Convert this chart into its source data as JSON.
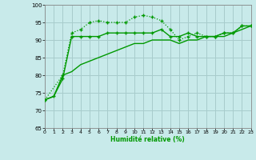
{
  "xlabel": "Humidité relative (%)",
  "xlim": [
    0,
    23
  ],
  "ylim": [
    65,
    100
  ],
  "yticks": [
    65,
    70,
    75,
    80,
    85,
    90,
    95,
    100
  ],
  "xticks": [
    0,
    1,
    2,
    3,
    4,
    5,
    6,
    7,
    8,
    9,
    10,
    11,
    12,
    13,
    14,
    15,
    16,
    17,
    18,
    19,
    20,
    21,
    22,
    23
  ],
  "bg_color": "#c8eaea",
  "grid_color": "#a8cccc",
  "line_color": "#009900",
  "line1_x": [
    0,
    1,
    2,
    3,
    4,
    5,
    6,
    7,
    8,
    9,
    10,
    11,
    12,
    13,
    14,
    15,
    16,
    17,
    18,
    19,
    20,
    21,
    22,
    23
  ],
  "line1_y": [
    73,
    74,
    79,
    91,
    91,
    91,
    91,
    92,
    92,
    92,
    92,
    92,
    92,
    93,
    91,
    91,
    92,
    91,
    91,
    91,
    92,
    92,
    94,
    94
  ],
  "line2_x": [
    0,
    2,
    3,
    4,
    5,
    6,
    7,
    8,
    9,
    10,
    11,
    12,
    13,
    14,
    15,
    16,
    17,
    18,
    19,
    20,
    21,
    22,
    23
  ],
  "line2_y": [
    73,
    80,
    92,
    93,
    95,
    95.5,
    95,
    95,
    95,
    96.5,
    97,
    96.5,
    95.5,
    93,
    90,
    91,
    92,
    91,
    91,
    92,
    92,
    94,
    94
  ],
  "line3_x": [
    0,
    1,
    2,
    3,
    4,
    5,
    6,
    7,
    8,
    9,
    10,
    11,
    12,
    13,
    14,
    15,
    16,
    17,
    18,
    19,
    20,
    21,
    22,
    23
  ],
  "line3_y": [
    73,
    74,
    80,
    81,
    83,
    84,
    85,
    86,
    87,
    88,
    89,
    89,
    90,
    90,
    90,
    89,
    90,
    90,
    91,
    91,
    91,
    92,
    93,
    94
  ]
}
